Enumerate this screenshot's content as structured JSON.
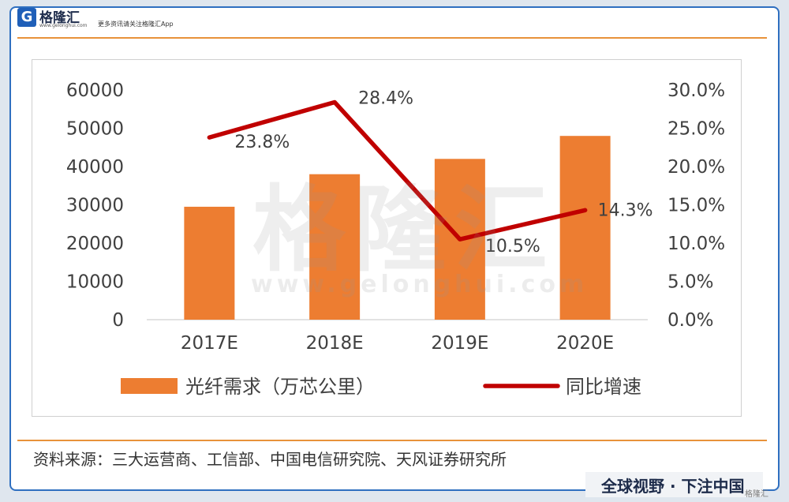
{
  "header": {
    "logo_letter": "G",
    "brand_name": "格隆汇",
    "brand_url": "www.gelonghui.com",
    "slogan": "更多资讯请关注格隆汇App"
  },
  "watermark": {
    "text": "格隆汇",
    "url": "www.gelonghui.com"
  },
  "chart_data": {
    "type": "bar",
    "categories": [
      "2017E",
      "2018E",
      "2019E",
      "2020E"
    ],
    "series": [
      {
        "name": "光纤需求（万芯公里）",
        "type": "bar",
        "axis": "left",
        "values": [
          29500,
          38000,
          42000,
          48000
        ],
        "color": "#ed7d31"
      },
      {
        "name": "同比增速",
        "type": "line",
        "axis": "right",
        "values": [
          23.8,
          28.4,
          10.5,
          14.3
        ],
        "labels": [
          "23.8%",
          "28.4%",
          "10.5%",
          "14.3%"
        ],
        "color": "#c00000"
      }
    ],
    "y_left": {
      "min": 0,
      "max": 60000,
      "ticks": [
        "0",
        "10000",
        "20000",
        "30000",
        "40000",
        "50000",
        "60000"
      ]
    },
    "y_right": {
      "min": 0,
      "max": 30,
      "ticks": [
        "0.0%",
        "5.0%",
        "10.0%",
        "15.0%",
        "20.0%",
        "25.0%",
        "30.0%"
      ]
    },
    "grid": false,
    "legend_position": "bottom"
  },
  "source": "资料来源：三大运营商、工信部、中国电信研究院、天风证券研究所",
  "footer": {
    "slogan": "全球视野 · 下注中国",
    "watermark": "格隆汇"
  }
}
